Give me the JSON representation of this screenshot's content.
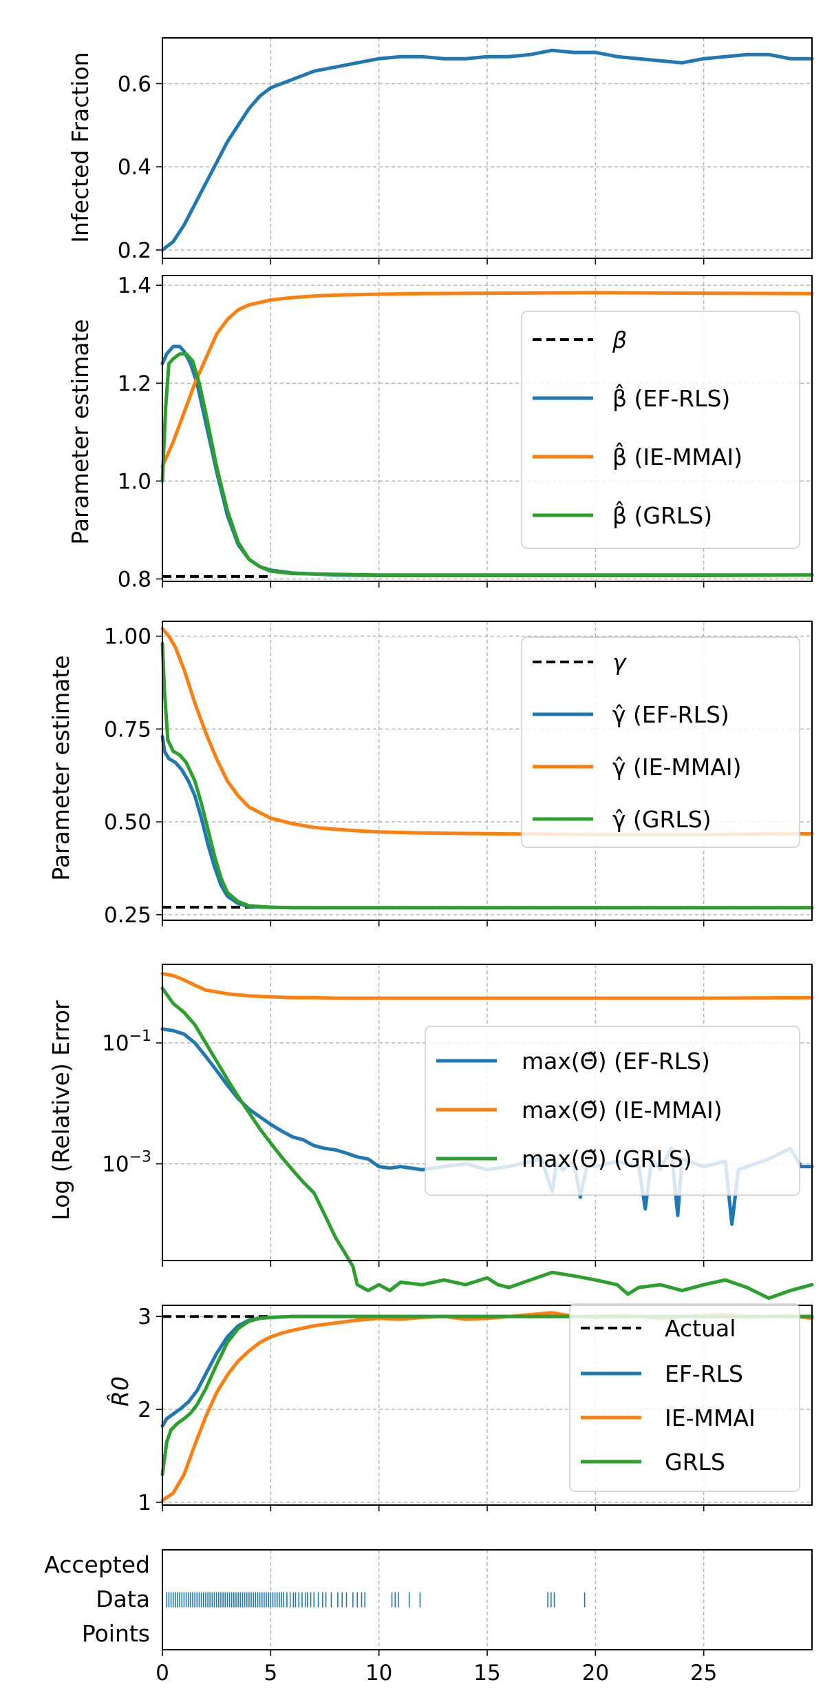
{
  "colors": {
    "blue": "#1f77b4",
    "orange": "#ff7f0e",
    "green": "#2ca02c",
    "black": "#000000"
  },
  "chart_data": [
    {
      "type": "line",
      "ylabel": "Infected Fraction",
      "xlim": [
        0,
        30
      ],
      "ylim": [
        0.18,
        0.71
      ],
      "yticks": [
        0.2,
        0.4,
        0.6
      ],
      "ytick_labels": [
        "0.2",
        "0.4",
        "0.6"
      ],
      "grid": true,
      "series": [
        {
          "name": "Infected Fraction",
          "color": "#1f77b4",
          "style": "solid",
          "x": [
            0,
            0.5,
            1,
            1.5,
            2,
            2.5,
            3,
            3.5,
            4,
            4.5,
            5,
            5.5,
            6,
            7,
            8,
            9,
            10,
            11,
            12,
            13,
            14,
            15,
            16,
            17,
            18,
            19,
            20,
            21,
            22,
            23,
            24,
            25,
            26,
            27,
            28,
            29,
            30
          ],
          "y": [
            0.2,
            0.22,
            0.26,
            0.31,
            0.36,
            0.41,
            0.46,
            0.5,
            0.54,
            0.57,
            0.59,
            0.6,
            0.61,
            0.63,
            0.64,
            0.65,
            0.66,
            0.665,
            0.665,
            0.66,
            0.66,
            0.665,
            0.665,
            0.67,
            0.68,
            0.675,
            0.675,
            0.665,
            0.66,
            0.655,
            0.65,
            0.66,
            0.665,
            0.67,
            0.67,
            0.66,
            0.66
          ]
        }
      ]
    },
    {
      "type": "line",
      "ylabel": "Parameter estimate",
      "xlim": [
        0,
        30
      ],
      "ylim": [
        0.795,
        1.42
      ],
      "yticks": [
        0.8,
        1.0,
        1.2,
        1.4
      ],
      "ytick_labels": [
        "0.8",
        "1.0",
        "1.2",
        "1.4"
      ],
      "grid": true,
      "legend_position": "center-right",
      "legend": [
        "β",
        "β̂ (EF-RLS)",
        "β̂ (IE-MMAI)",
        "β̂ (GRLS)"
      ],
      "series": [
        {
          "name": "β",
          "color": "#000000",
          "style": "dashed",
          "x": [
            0,
            5
          ],
          "y": [
            0.805,
            0.805
          ]
        },
        {
          "name": "β̂ (EF-RLS)",
          "color": "#1f77b4",
          "style": "solid",
          "x": [
            0,
            0.2,
            0.5,
            0.8,
            1.0,
            1.3,
            1.6,
            2.0,
            2.5,
            3.0,
            3.5,
            4.0,
            4.5,
            5.0,
            6,
            7,
            8,
            10,
            15,
            20,
            25,
            30
          ],
          "y": [
            1.24,
            1.26,
            1.275,
            1.275,
            1.265,
            1.24,
            1.2,
            1.12,
            1.02,
            0.93,
            0.87,
            0.84,
            0.825,
            0.818,
            0.812,
            0.81,
            0.808,
            0.807,
            0.807,
            0.807,
            0.807,
            0.808
          ]
        },
        {
          "name": "β̂ (IE-MMAI)",
          "color": "#ff7f0e",
          "style": "solid",
          "x": [
            0,
            0.5,
            1.0,
            1.5,
            2.0,
            2.5,
            3.0,
            3.5,
            4.0,
            5,
            6,
            7,
            8,
            10,
            12,
            15,
            20,
            25,
            30
          ],
          "y": [
            1.03,
            1.08,
            1.14,
            1.2,
            1.25,
            1.3,
            1.33,
            1.35,
            1.36,
            1.37,
            1.375,
            1.378,
            1.38,
            1.382,
            1.383,
            1.384,
            1.385,
            1.384,
            1.383
          ]
        },
        {
          "name": "β̂ (GRLS)",
          "color": "#2ca02c",
          "style": "solid",
          "x": [
            0,
            0.15,
            0.3,
            0.5,
            0.8,
            1.1,
            1.4,
            1.7,
            2.0,
            2.5,
            3.0,
            3.5,
            4.0,
            4.5,
            5,
            6,
            7,
            10,
            15,
            20,
            25,
            30
          ],
          "y": [
            1.0,
            1.15,
            1.24,
            1.25,
            1.26,
            1.26,
            1.245,
            1.2,
            1.14,
            1.03,
            0.94,
            0.875,
            0.84,
            0.825,
            0.816,
            0.811,
            0.81,
            0.808,
            0.808,
            0.808,
            0.808,
            0.808
          ]
        }
      ]
    },
    {
      "type": "line",
      "ylabel": "Parameter estimate",
      "xlim": [
        0,
        30
      ],
      "ylim": [
        0.235,
        1.04
      ],
      "yticks": [
        0.25,
        0.5,
        0.75,
        1.0
      ],
      "ytick_labels": [
        "0.25",
        "0.50",
        "0.75",
        "1.00"
      ],
      "grid": true,
      "legend_position": "upper-right",
      "legend": [
        "γ",
        "γ̂ (EF-RLS)",
        "γ̂ (IE-MMAI)",
        "γ̂ (GRLS)"
      ],
      "series": [
        {
          "name": "γ",
          "color": "#000000",
          "style": "dashed",
          "x": [
            0,
            5
          ],
          "y": [
            0.27,
            0.27
          ]
        },
        {
          "name": "γ̂ (EF-RLS)",
          "color": "#1f77b4",
          "style": "solid",
          "x": [
            0,
            0.1,
            0.3,
            0.6,
            0.9,
            1.2,
            1.5,
            1.8,
            2.1,
            2.4,
            2.7,
            3.0,
            3.5,
            4.0,
            5,
            6,
            8,
            10,
            15,
            20,
            25,
            30
          ],
          "y": [
            0.73,
            0.69,
            0.67,
            0.66,
            0.64,
            0.61,
            0.57,
            0.51,
            0.44,
            0.38,
            0.33,
            0.3,
            0.28,
            0.272,
            0.27,
            0.269,
            0.269,
            0.269,
            0.269,
            0.269,
            0.269,
            0.269
          ]
        },
        {
          "name": "γ̂ (IE-MMAI)",
          "color": "#ff7f0e",
          "style": "solid",
          "x": [
            0,
            0.3,
            0.6,
            1.0,
            1.5,
            2.0,
            2.5,
            3.0,
            3.5,
            4.0,
            5,
            6,
            7,
            8,
            9,
            10,
            12,
            15,
            20,
            25,
            30
          ],
          "y": [
            1.02,
            1.0,
            0.97,
            0.91,
            0.82,
            0.74,
            0.67,
            0.61,
            0.57,
            0.54,
            0.51,
            0.495,
            0.485,
            0.48,
            0.476,
            0.473,
            0.47,
            0.468,
            0.466,
            0.466,
            0.468
          ]
        },
        {
          "name": "γ̂ (GRLS)",
          "color": "#2ca02c",
          "style": "solid",
          "x": [
            0,
            0.1,
            0.25,
            0.5,
            0.8,
            1.1,
            1.5,
            1.8,
            2.1,
            2.4,
            2.7,
            3.0,
            3.5,
            4.0,
            5,
            6,
            8,
            10,
            15,
            20,
            25,
            30
          ],
          "y": [
            0.98,
            0.85,
            0.72,
            0.69,
            0.68,
            0.66,
            0.61,
            0.55,
            0.48,
            0.41,
            0.35,
            0.31,
            0.285,
            0.274,
            0.27,
            0.269,
            0.269,
            0.269,
            0.269,
            0.269,
            0.269,
            0.269
          ]
        }
      ]
    },
    {
      "type": "line",
      "ylabel": "Log (Relative) Error",
      "yscale": "log",
      "xlim": [
        0,
        30
      ],
      "ylim_log10": [
        -4.6,
        0.3
      ],
      "yticks_log10": [
        -3,
        -1
      ],
      "ytick_labels": [
        "10−3",
        "10−1"
      ],
      "grid": true,
      "legend_position": "center-right",
      "legend": [
        "max(Θ̃) (EF-RLS)",
        "max(Θ̃) (IE-MMAI)",
        "max(Θ̃) (GRLS)"
      ],
      "series": [
        {
          "name": "max(Θ̃) (EF-RLS)",
          "color": "#1f77b4",
          "style": "solid",
          "x": [
            0,
            0.5,
            1.0,
            1.5,
            2.0,
            2.5,
            3.0,
            3.5,
            4.0,
            4.5,
            5.0,
            5.5,
            6.0,
            6.5,
            7.0,
            7.5,
            8.0,
            8.5,
            9.0,
            9.5,
            10.0,
            10.5,
            11.0,
            12,
            13,
            14,
            15,
            16,
            17,
            17.5,
            18,
            18.2,
            18.5,
            19,
            19.3,
            19.6,
            20,
            21,
            22,
            22.3,
            22.6,
            23,
            23.5,
            23.8,
            24,
            25,
            26,
            26.3,
            26.6,
            27,
            28,
            29,
            29.5,
            30
          ],
          "y": [
            0.17,
            0.16,
            0.14,
            0.1,
            0.06,
            0.035,
            0.02,
            0.012,
            0.008,
            0.006,
            0.0045,
            0.0035,
            0.0028,
            0.0025,
            0.002,
            0.0018,
            0.0017,
            0.0015,
            0.0013,
            0.0012,
            0.0009,
            0.00085,
            0.0009,
            0.0008,
            0.0009,
            0.001,
            0.0008,
            0.0009,
            0.0011,
            0.0012,
            0.00035,
            0.001,
            0.0008,
            0.0011,
            0.00028,
            0.0009,
            0.0009,
            0.0011,
            0.0009,
            0.00018,
            0.0012,
            0.0008,
            0.0018,
            0.00014,
            0.0012,
            0.0009,
            0.0011,
            0.0001,
            0.0008,
            0.0009,
            0.0012,
            0.0018,
            0.0009,
            0.0009
          ]
        },
        {
          "name": "max(Θ̃) (IE-MMAI)",
          "color": "#ff7f0e",
          "style": "solid",
          "x": [
            0,
            0.5,
            1.0,
            1.5,
            2.0,
            3,
            4,
            5,
            6,
            7,
            8,
            10,
            12,
            15,
            20,
            25,
            30
          ],
          "y": [
            1.4,
            1.3,
            1.1,
            0.9,
            0.75,
            0.65,
            0.6,
            0.58,
            0.56,
            0.56,
            0.55,
            0.55,
            0.55,
            0.55,
            0.55,
            0.55,
            0.56
          ]
        },
        {
          "name": "max(Θ̃) (GRLS)",
          "color": "#2ca02c",
          "style": "solid",
          "x": [
            0,
            0.5,
            1.0,
            1.5,
            2.0,
            2.5,
            3.0,
            3.5,
            4.0,
            4.5,
            5.0,
            5.5,
            6.0,
            6.5,
            7.0,
            7.3,
            7.6,
            8.0,
            8.4,
            8.8,
            9.0,
            9.5,
            10,
            10.5,
            11,
            12,
            13,
            14,
            15,
            15.5,
            16,
            17,
            18,
            19,
            20,
            21,
            21.5,
            22,
            23,
            24,
            25,
            26,
            27,
            28,
            29,
            30
          ],
          "y": [
            0.8,
            0.45,
            0.32,
            0.2,
            0.1,
            0.05,
            0.025,
            0.013,
            0.007,
            0.0038,
            0.0022,
            0.0013,
            0.0008,
            0.0005,
            0.00033,
            0.0002,
            0.00012,
            6e-05,
            3.5e-05,
            2e-05,
            1e-05,
            8e-06,
            1e-05,
            8e-06,
            1.1e-05,
            1e-05,
            1.2e-05,
            1e-05,
            1.3e-05,
            1e-05,
            9e-06,
            1.2e-05,
            1.6e-05,
            1.4e-05,
            1.2e-05,
            1e-05,
            7e-06,
            9e-06,
            1e-05,
            8e-06,
            1e-05,
            1.2e-05,
            9e-06,
            6e-06,
            8e-06,
            1e-05
          ]
        }
      ]
    },
    {
      "type": "line",
      "ylabel": "R̂0",
      "xlim": [
        0,
        30
      ],
      "ylim": [
        0.97,
        3.12
      ],
      "yticks": [
        1,
        2,
        3
      ],
      "ytick_labels": [
        "1",
        "2",
        "3"
      ],
      "grid": true,
      "legend_position": "center-right",
      "legend": [
        "Actual",
        "EF-RLS",
        "IE-MMAI",
        "GRLS"
      ],
      "series": [
        {
          "name": "Actual",
          "color": "#000000",
          "style": "dashed",
          "x": [
            0,
            5
          ],
          "y": [
            3.0,
            3.0
          ]
        },
        {
          "name": "EF-RLS",
          "color": "#1f77b4",
          "style": "solid",
          "x": [
            0,
            0.2,
            0.5,
            0.8,
            1.2,
            1.6,
            2.0,
            2.5,
            3.0,
            3.5,
            4.0,
            4.5,
            5.0,
            6,
            8,
            10,
            15,
            20,
            25,
            30
          ],
          "y": [
            1.82,
            1.9,
            1.95,
            2.0,
            2.08,
            2.2,
            2.38,
            2.6,
            2.78,
            2.9,
            2.96,
            2.98,
            2.99,
            3.0,
            3.0,
            3.0,
            3.0,
            3.0,
            3.0,
            3.0
          ]
        },
        {
          "name": "IE-MMAI",
          "color": "#ff7f0e",
          "style": "solid",
          "x": [
            0,
            0.5,
            1.0,
            1.5,
            2.0,
            2.5,
            3.0,
            3.5,
            4.0,
            4.5,
            5.0,
            5.5,
            6.0,
            7,
            8,
            9,
            10,
            11,
            12,
            13,
            14,
            15,
            16,
            17,
            18,
            19,
            20,
            21,
            22,
            23,
            24,
            25,
            26,
            27,
            28,
            29,
            30
          ],
          "y": [
            1.02,
            1.1,
            1.3,
            1.62,
            1.92,
            2.18,
            2.37,
            2.52,
            2.63,
            2.72,
            2.78,
            2.82,
            2.85,
            2.9,
            2.93,
            2.96,
            2.98,
            2.97,
            2.99,
            3.0,
            2.97,
            2.98,
            3.0,
            3.02,
            3.04,
            3.0,
            2.99,
            3.01,
            3.0,
            2.98,
            3.0,
            3.01,
            3.02,
            2.99,
            3.0,
            3.01,
            2.98
          ]
        },
        {
          "name": "GRLS",
          "color": "#2ca02c",
          "style": "solid",
          "x": [
            0,
            0.2,
            0.4,
            0.7,
            1.0,
            1.3,
            1.6,
            2.0,
            2.5,
            3.0,
            3.5,
            4.0,
            4.5,
            5.0,
            6,
            8,
            10,
            15,
            20,
            25,
            30
          ],
          "y": [
            1.3,
            1.65,
            1.78,
            1.85,
            1.9,
            1.96,
            2.05,
            2.22,
            2.48,
            2.72,
            2.87,
            2.95,
            2.98,
            2.99,
            3.0,
            3.0,
            3.0,
            3.0,
            3.0,
            3.0,
            3.0
          ]
        }
      ]
    },
    {
      "type": "event",
      "ylabel_lines": [
        "Accepted",
        "Data",
        "Points"
      ],
      "xlim": [
        0,
        30
      ],
      "xticks": [
        0,
        5,
        10,
        15,
        20,
        25
      ],
      "xtick_labels": [
        "0",
        "5",
        "10",
        "15",
        "20",
        "25"
      ],
      "grid": true,
      "color": "#1f77b4",
      "events": [
        0.2,
        0.3,
        0.4,
        0.5,
        0.6,
        0.7,
        0.8,
        0.9,
        1.0,
        1.1,
        1.2,
        1.3,
        1.4,
        1.5,
        1.6,
        1.7,
        1.8,
        1.9,
        2.0,
        2.1,
        2.2,
        2.3,
        2.4,
        2.5,
        2.6,
        2.7,
        2.8,
        2.9,
        3.0,
        3.1,
        3.2,
        3.3,
        3.4,
        3.5,
        3.6,
        3.7,
        3.8,
        3.9,
        4.0,
        4.1,
        4.2,
        4.3,
        4.4,
        4.5,
        4.6,
        4.7,
        4.8,
        4.9,
        5.0,
        5.1,
        5.2,
        5.3,
        5.4,
        5.5,
        5.6,
        5.75,
        5.9,
        6.05,
        6.15,
        6.3,
        6.45,
        6.6,
        6.7,
        6.85,
        7.0,
        7.2,
        7.4,
        7.55,
        7.8,
        8.1,
        8.3,
        8.5,
        8.8,
        9.0,
        9.2,
        9.35,
        10.6,
        10.75,
        10.9,
        11.4,
        11.9,
        17.8,
        17.95,
        18.1,
        19.5
      ]
    }
  ]
}
